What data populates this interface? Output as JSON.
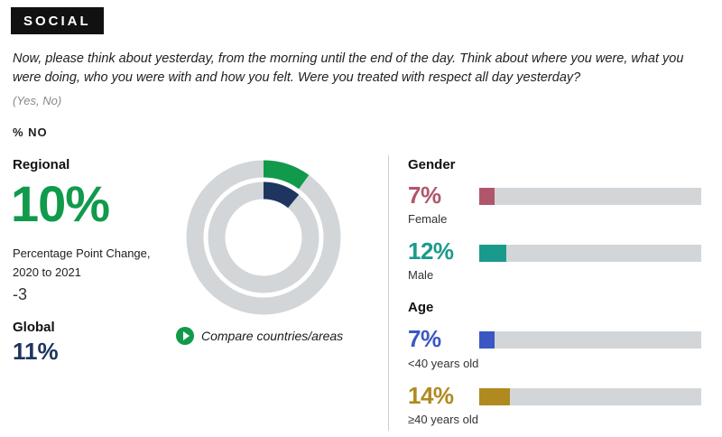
{
  "header": {
    "tag": "SOCIAL",
    "question": "Now, please think about yesterday, from the morning until the end of the day. Think about where you were, what you were doing, who you were with and how you felt. Were you treated with respect all day yesterday?",
    "answer_options": "(Yes, No)",
    "metric_label": "% NO"
  },
  "regional": {
    "heading": "Regional",
    "value": "10%",
    "change_label": "Percentage Point Change, 2020 to 2021",
    "change_value": "-3"
  },
  "global": {
    "heading": "Global",
    "value": "11%"
  },
  "compare_link": {
    "label": "Compare countries/areas"
  },
  "colors": {
    "regional": "#119a4c",
    "global": "#1e3560",
    "track": "#d3d6d8",
    "female": "#b0566b",
    "male": "#1a9a8c",
    "under40": "#3b57c4",
    "over40": "#b0891f"
  },
  "chart_data": [
    {
      "type": "pie",
      "variant": "concentric-donut",
      "series": [
        {
          "name": "Regional",
          "value": 10
        },
        {
          "name": "Global",
          "value": 11
        }
      ],
      "units": "%"
    },
    {
      "type": "bar",
      "orientation": "horizontal",
      "title": "Gender",
      "categories": [
        "Female",
        "Male"
      ],
      "values": [
        7,
        12
      ],
      "labels": [
        "7%",
        "12%"
      ],
      "xlim": [
        0,
        100
      ]
    },
    {
      "type": "bar",
      "orientation": "horizontal",
      "title": "Age",
      "categories": [
        "<40 years old",
        "≥40 years old"
      ],
      "values": [
        7,
        14
      ],
      "labels": [
        "7%",
        "14%"
      ],
      "xlim": [
        0,
        100
      ]
    }
  ]
}
